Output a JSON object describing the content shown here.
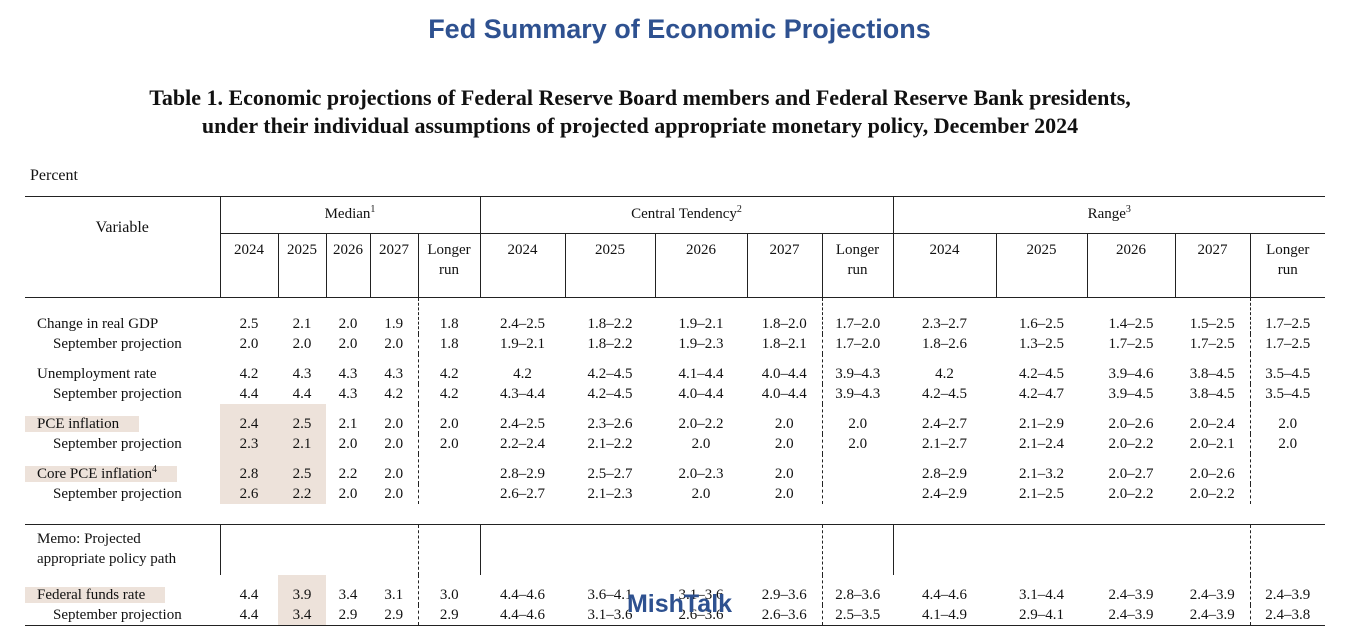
{
  "header": {
    "title": "Fed Summary of Economic Projections"
  },
  "table": {
    "caption": [
      "Table 1. Economic projections of Federal Reserve Board members and Federal Reserve Bank presidents,",
      "under their individual assumptions of projected appropriate monetary policy, December 2024"
    ],
    "unit": "Percent",
    "variable_header": "Variable",
    "groups": [
      {
        "label": "Median",
        "note": "1",
        "columns": [
          "2024",
          "2025",
          "2026",
          "2027",
          "Longer run"
        ]
      },
      {
        "label": "Central Tendency",
        "note": "2",
        "columns": [
          "2024",
          "2025",
          "2026",
          "2027",
          "Longer run"
        ]
      },
      {
        "label": "Range",
        "note": "3",
        "columns": [
          "2024",
          "2025",
          "2026",
          "2027",
          "Longer run"
        ]
      }
    ],
    "rows": [
      {
        "label": "Change in real GDP",
        "values": [
          "2.5",
          "2.1",
          "2.0",
          "1.9",
          "1.8",
          "2.4–2.5",
          "1.8–2.2",
          "1.9–2.1",
          "1.8–2.0",
          "1.7–2.0",
          "2.3–2.7",
          "1.6–2.5",
          "1.4–2.5",
          "1.5–2.5",
          "1.7–2.5"
        ]
      },
      {
        "label": "September projection",
        "values": [
          "2.0",
          "2.0",
          "2.0",
          "2.0",
          "1.8",
          "1.9–2.1",
          "1.8–2.2",
          "1.9–2.3",
          "1.8–2.1",
          "1.7–2.0",
          "1.8–2.6",
          "1.3–2.5",
          "1.7–2.5",
          "1.7–2.5",
          "1.7–2.5"
        ]
      },
      {
        "label": "Unemployment rate",
        "values": [
          "4.2",
          "4.3",
          "4.3",
          "4.3",
          "4.2",
          "4.2",
          "4.2–4.5",
          "4.1–4.4",
          "4.0–4.4",
          "3.9–4.3",
          "4.2",
          "4.2–4.5",
          "3.9–4.6",
          "3.8–4.5",
          "3.5–4.5"
        ]
      },
      {
        "label": "September projection",
        "values": [
          "4.4",
          "4.4",
          "4.3",
          "4.2",
          "4.2",
          "4.3–4.4",
          "4.2–4.5",
          "4.0–4.4",
          "4.0–4.4",
          "3.9–4.3",
          "4.2–4.5",
          "4.2–4.7",
          "3.9–4.5",
          "3.8–4.5",
          "3.5–4.5"
        ]
      },
      {
        "label": "PCE inflation",
        "values": [
          "2.4",
          "2.5",
          "2.1",
          "2.0",
          "2.0",
          "2.4–2.5",
          "2.3–2.6",
          "2.0–2.2",
          "2.0",
          "2.0",
          "2.4–2.7",
          "2.1–2.9",
          "2.0–2.6",
          "2.0–2.4",
          "2.0"
        ]
      },
      {
        "label": "September projection",
        "values": [
          "2.3",
          "2.1",
          "2.0",
          "2.0",
          "2.0",
          "2.2–2.4",
          "2.1–2.2",
          "2.0",
          "2.0",
          "2.0",
          "2.1–2.7",
          "2.1–2.4",
          "2.0–2.2",
          "2.0–2.1",
          "2.0"
        ]
      },
      {
        "label": "Core PCE inflation",
        "note": "4",
        "values": [
          "2.8",
          "2.5",
          "2.2",
          "2.0",
          null,
          "2.8–2.9",
          "2.5–2.7",
          "2.0–2.3",
          "2.0",
          null,
          "2.8–2.9",
          "2.1–3.2",
          "2.0–2.7",
          "2.0–2.6",
          null
        ]
      },
      {
        "label": "September projection",
        "values": [
          "2.6",
          "2.2",
          "2.0",
          "2.0",
          null,
          "2.6–2.7",
          "2.1–2.3",
          "2.0",
          "2.0",
          null,
          "2.4–2.9",
          "2.1–2.5",
          "2.0–2.2",
          "2.0–2.2",
          null
        ]
      }
    ],
    "memo": [
      "Memo: Projected",
      "appropriate policy path"
    ],
    "memo_rows": [
      {
        "label": "Federal funds rate",
        "values": [
          "4.4",
          "3.9",
          "3.4",
          "3.1",
          "3.0",
          "4.4–4.6",
          "3.6–4.1",
          "3.1–3.6",
          "2.9–3.6",
          "2.8–3.6",
          "4.4–4.6",
          "3.1–4.4",
          "2.4–3.9",
          "2.4–3.9",
          "2.4–3.9"
        ]
      },
      {
        "label": "September projection",
        "values": [
          "4.4",
          "3.4",
          "2.9",
          "2.9",
          "2.9",
          "4.4–4.6",
          "3.1–3.6",
          "2.6–3.6",
          "2.6–3.6",
          "2.5–3.5",
          "4.1–4.9",
          "2.9–4.1",
          "2.4–3.9",
          "2.4–3.9",
          "2.4–3.8"
        ]
      }
    ]
  },
  "footer": {
    "brand": "MishTalk"
  }
}
